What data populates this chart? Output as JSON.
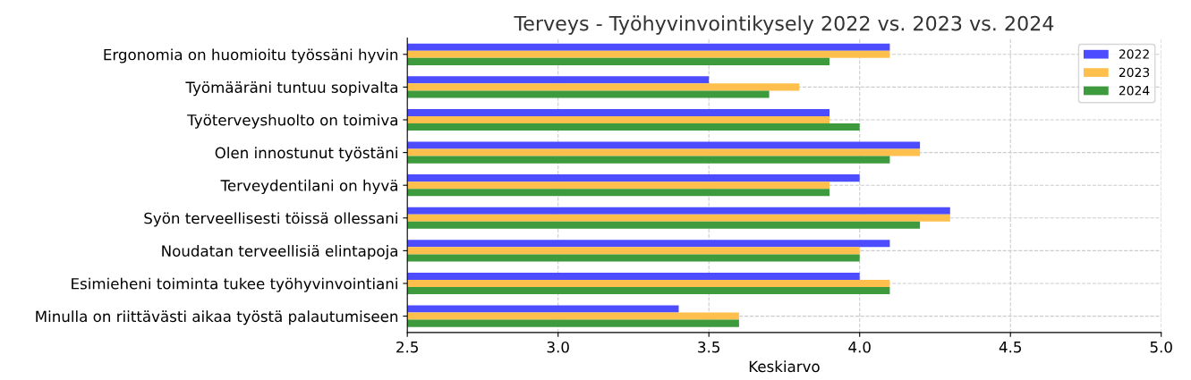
{
  "chart_data": {
    "type": "bar",
    "orientation": "horizontal",
    "title": "Terveys - Työhyvinvointikysely 2022 vs. 2023 vs. 2024",
    "xlabel": "Keskiarvo",
    "categories": [
      "Ergonomia on huomioitu työssäni hyvin",
      "Työmääräni tuntuu sopivalta",
      "Työterveyshuolto on toimiva",
      "Olen innostunut työstäni",
      "Terveydentilani on hyvä",
      "Syön terveellisesti töissä ollessani",
      "Noudatan terveellisiä elintapoja",
      "Esimieheni toiminta tukee työhyvinvointiani",
      "Minulla on riittävästi aikaa työstä palautumiseen"
    ],
    "series": [
      {
        "name": "2022",
        "color": "#4d4dff",
        "values": [
          4.1,
          3.5,
          3.9,
          4.2,
          4.0,
          4.3,
          4.1,
          4.0,
          3.4
        ]
      },
      {
        "name": "2023",
        "color": "#ffbf4d",
        "values": [
          4.1,
          3.8,
          3.9,
          4.2,
          3.9,
          4.3,
          4.0,
          4.1,
          3.6
        ]
      },
      {
        "name": "2024",
        "color": "#3d9a3d",
        "values": [
          3.9,
          3.7,
          4.0,
          4.1,
          3.9,
          4.2,
          4.0,
          4.1,
          3.6
        ]
      }
    ],
    "xlim": [
      2.5,
      5.0
    ],
    "xticks": [
      {
        "value": 2.5,
        "label": "2.5"
      },
      {
        "value": 3.0,
        "label": "3.0"
      },
      {
        "value": 3.5,
        "label": "3.5"
      },
      {
        "value": 4.0,
        "label": "4.0"
      },
      {
        "value": 4.5,
        "label": "4.5"
      },
      {
        "value": 5.0,
        "label": "5.0"
      }
    ],
    "grid": true,
    "legend": "top right"
  }
}
